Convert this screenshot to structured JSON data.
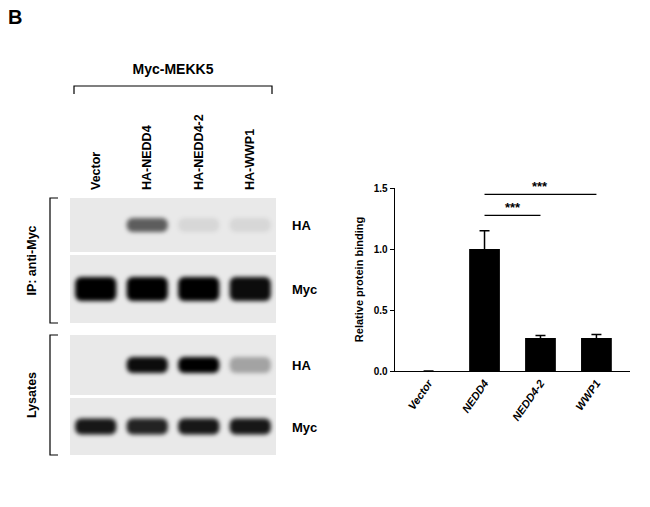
{
  "panel_label": "B",
  "blot": {
    "header": "Myc-MEKK5",
    "lanes": [
      "Vector",
      "HA-NEDD4",
      "HA-NEDD4-2",
      "HA-WWP1"
    ],
    "groups": [
      {
        "label": "IP: anti-Myc",
        "rows": [
          {
            "label": "HA",
            "intensity": [
              0,
              0.6,
              0.08,
              0.08
            ]
          },
          {
            "label": "Myc",
            "intensity": [
              1,
              1,
              1,
              0.95
            ]
          }
        ]
      },
      {
        "label": "Lysates",
        "rows": [
          {
            "label": "HA",
            "intensity": [
              0,
              0.95,
              1,
              0.3
            ]
          },
          {
            "label": "Myc",
            "intensity": [
              0.9,
              0.85,
              0.9,
              0.9
            ]
          }
        ]
      }
    ]
  },
  "chart_data": {
    "type": "bar",
    "categories": [
      "Vector",
      "NEDD4",
      "NEDD4-2",
      "WWP1"
    ],
    "values": [
      0,
      1.0,
      0.27,
      0.27
    ],
    "error": [
      0,
      0.15,
      0.02,
      0.03
    ],
    "color": "#000000",
    "y_label": "Relative protein binding",
    "ylim": [
      0,
      1.5
    ],
    "yticks": [
      {
        "value": 0,
        "label": "0.0"
      },
      {
        "value": 0.5,
        "label": "0.5"
      },
      {
        "value": 1,
        "label": "1.0"
      },
      {
        "value": 1.5,
        "label": "1.5"
      }
    ],
    "grid": false,
    "annotations": [
      {
        "from": "NEDD4",
        "to": "NEDD4-2",
        "text": "***"
      },
      {
        "from": "NEDD4",
        "to": "WWP1",
        "text": "***"
      }
    ]
  }
}
